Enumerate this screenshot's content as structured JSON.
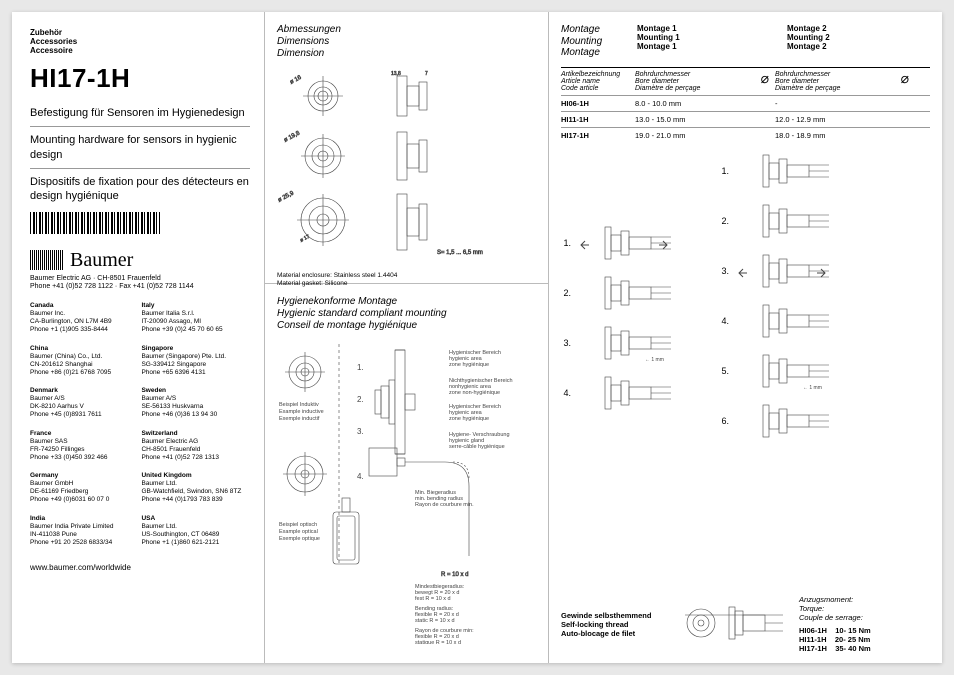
{
  "header": {
    "de": "Zubehör",
    "en": "Accessories",
    "fr": "Accessoire"
  },
  "product": "HI17-1H",
  "subtitles": {
    "de": "Befestigung für Sensoren im Hygienedesign",
    "en": "Mounting hardware for sensors in hygienic design",
    "fr": "Dispositifs de fixation pour des détecteurs en design hygiénique"
  },
  "brand": "Baumer",
  "company_line": "Baumer Electric AG · CH-8501 Frauenfeld",
  "phone_line": "Phone +41 (0)52 728 1122 · Fax +41 (0)52 728 1144",
  "countries_left": [
    {
      "name": "Canada",
      "l1": "Baumer Inc.",
      "l2": "CA-Burlington, ON L7M 4B9",
      "l3": "Phone +1 (1)905 335-8444"
    },
    {
      "name": "China",
      "l1": "Baumer (China) Co., Ltd.",
      "l2": "CN-201612 Shanghai",
      "l3": "Phone +86 (0)21 6768 7095"
    },
    {
      "name": "Denmark",
      "l1": "Baumer A/S",
      "l2": "DK-8210 Aarhus V",
      "l3": "Phone +45 (0)8931 7611"
    },
    {
      "name": "France",
      "l1": "Baumer SAS",
      "l2": "FR-74250 Fillinges",
      "l3": "Phone +33 (0)450 392 466"
    },
    {
      "name": "Germany",
      "l1": "Baumer GmbH",
      "l2": "DE-61169 Friedberg",
      "l3": "Phone +49 (0)6031 60 07 0"
    },
    {
      "name": "India",
      "l1": "Baumer India Private Limited",
      "l2": "IN-411038 Pune",
      "l3": "Phone +91 20 2528 6833/34"
    }
  ],
  "countries_right": [
    {
      "name": "Italy",
      "l1": "Baumer Italia S.r.l.",
      "l2": "IT-20090 Assago, MI",
      "l3": "Phone +39 (0)2 45 70 60 65"
    },
    {
      "name": "Singapore",
      "l1": "Baumer (Singapore) Pte. Ltd.",
      "l2": "SG-339412 Singapore",
      "l3": "Phone +65 6396 4131"
    },
    {
      "name": "Sweden",
      "l1": "Baumer A/S",
      "l2": "SE-56133 Huskvarna",
      "l3": "Phone +46 (0)36 13 94 30"
    },
    {
      "name": "Switzerland",
      "l1": "Baumer Electric AG",
      "l2": "CH-8501 Frauenfeld",
      "l3": "Phone +41 (0)52 728 1313"
    },
    {
      "name": "United Kingdom",
      "l1": "Baumer Ltd.",
      "l2": "GB-Watchfield, Swindon, SN6 8TZ",
      "l3": "Phone +44 (0)1793 783 839"
    },
    {
      "name": "USA",
      "l1": "Baumer Ltd.",
      "l2": "US-Southington, CT 06489",
      "l3": "Phone +1 (1)860 621-2121"
    }
  ],
  "www": "www.baumer.com/worldwide",
  "dim_title": {
    "de": "Abmessungen",
    "en": "Dimensions",
    "fr": "Dimension"
  },
  "dim_labels": {
    "d1": "ø 16",
    "d2": "ø 19,8",
    "d3": "ø 25,9",
    "s": "S= 1,5 ... 6,5 mm",
    "t1": "13,8",
    "t2": "7"
  },
  "material": {
    "l1": "Material enclosure: Stainless steel 1.4404",
    "l2": "Material gasket: Silicone"
  },
  "hyg_title": {
    "de": "Hygienekonforme Montage",
    "en": "Hygienic standard compliant mounting",
    "fr": "Conseil de montage hygiénique"
  },
  "hyg_labels": {
    "ex_ind": "Beispiel Induktiv\nExample inductive\nExemple inductif",
    "ex_opt": "Beispiel optisch\nExample optical\nExemple optique",
    "zone_h": "Hygienischer Bereich\nhygienic area\nzone hygiénique",
    "zone_nh": "Nichthygienischer Bereich\nnonhygienic area\nzone non-hygiénique",
    "zone_h2": "Hygienischer Bereich\nhygienic area\nzone hygiénique",
    "gland": "Hygiene- Verschraubung\nhygienic gland\nserre-câble hygiénique",
    "bend": "Min. Biegeradius\nmin. bending radius\nRayon de courbure min.",
    "r1": "R = 10 x d",
    "min_bend": "Mindestbiegeradius:\nbewegt     R = 20 x d\nfest           R = 10 x d",
    "bend_rad": "Bending radius:\nflexible     R = 20 x d\nstatic        R = 10 x d",
    "rayon": "Rayon de courbure min:\nflexible     R = 20 x d\nstatique    R = 10 x d"
  },
  "montage_title": {
    "de": "Montage",
    "en": "Mounting",
    "fr": "Montage"
  },
  "mount1": {
    "de": "Montage 1",
    "en": "Mounting 1",
    "fr": "Montage 1"
  },
  "mount2": {
    "de": "Montage 2",
    "en": "Mounting 2",
    "fr": "Montage 2"
  },
  "tbl_head": {
    "art": "Artikelbezeichnung\nArticle name\nCode article",
    "bore": "Bohrdurchmesser\nBore diameter\nDiamètre de perçage"
  },
  "rows": [
    {
      "art": "HI06-1H",
      "b1": "8.0 - 10.0 mm",
      "b2": "-"
    },
    {
      "art": "HI11-1H",
      "b1": "13.0 - 15.0 mm",
      "b2": "12.0 - 12.9 mm"
    },
    {
      "art": "HI17-1H",
      "b1": "19.0 - 21.0 mm",
      "b2": "18.0 - 18.9 mm"
    }
  ],
  "onemm": "← 1 mm",
  "lock": {
    "de": "Gewinde selbsthemmend",
    "en": "Self-locking thread",
    "fr": "Auto-blocage de filet"
  },
  "torque_head": {
    "de": "Anzugsmoment:",
    "en": "Torque:",
    "fr": "Couple de serrage:"
  },
  "torque_rows": [
    {
      "a": "HI06-1H",
      "v": "10- 15 Nm"
    },
    {
      "a": "HI11-1H",
      "v": "20- 25 Nm"
    },
    {
      "a": "HI17-1H",
      "v": "35- 40 Nm"
    }
  ]
}
